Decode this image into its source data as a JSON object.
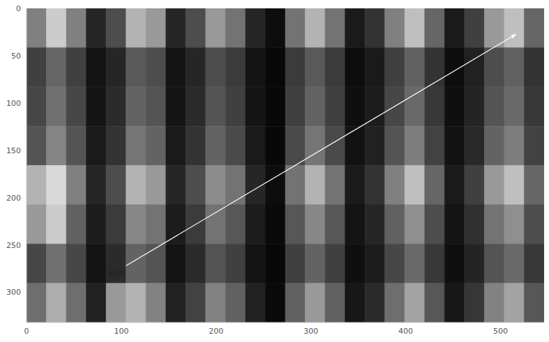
{
  "chart_data": {
    "type": "heatmap",
    "xlim": [
      0,
      546
    ],
    "ylim": [
      332,
      0
    ],
    "xticks": [
      0,
      100,
      200,
      300,
      400,
      500
    ],
    "yticks": [
      0,
      50,
      100,
      150,
      200,
      250,
      300
    ],
    "color": "gray",
    "color_range": [
      0,
      100
    ],
    "grid": false,
    "cells": [
      [
        50,
        80,
        50,
        15,
        30,
        70,
        60,
        15,
        30,
        60,
        45,
        15,
        5,
        45,
        70,
        45,
        10,
        20,
        50,
        75,
        40,
        10,
        25,
        60,
        75,
        40
      ],
      [
        25,
        40,
        25,
        8,
        15,
        35,
        30,
        8,
        15,
        30,
        23,
        8,
        3,
        23,
        35,
        23,
        5,
        10,
        25,
        38,
        20,
        5,
        13,
        30,
        38,
        20
      ],
      [
        28,
        44,
        28,
        8,
        17,
        39,
        33,
        8,
        17,
        33,
        25,
        8,
        3,
        25,
        39,
        25,
        6,
        11,
        28,
        41,
        22,
        6,
        14,
        33,
        41,
        22
      ],
      [
        33,
        52,
        33,
        10,
        20,
        46,
        39,
        10,
        20,
        39,
        29,
        10,
        3,
        29,
        46,
        29,
        7,
        13,
        33,
        49,
        26,
        7,
        16,
        39,
        49,
        26
      ],
      [
        70,
        85,
        50,
        15,
        30,
        70,
        60,
        15,
        30,
        55,
        45,
        15,
        5,
        45,
        70,
        45,
        10,
        20,
        50,
        75,
        40,
        10,
        25,
        60,
        75,
        40
      ],
      [
        60,
        80,
        38,
        11,
        23,
        53,
        45,
        11,
        23,
        45,
        34,
        11,
        4,
        34,
        53,
        34,
        8,
        15,
        38,
        56,
        30,
        8,
        19,
        45,
        56,
        30
      ],
      [
        28,
        44,
        28,
        8,
        17,
        39,
        33,
        8,
        17,
        33,
        25,
        8,
        3,
        25,
        39,
        25,
        6,
        11,
        28,
        41,
        22,
        6,
        14,
        33,
        41,
        22
      ],
      [
        43,
        68,
        43,
        13,
        60,
        70,
        51,
        13,
        26,
        51,
        38,
        13,
        4,
        38,
        60,
        38,
        9,
        17,
        43,
        64,
        34,
        9,
        21,
        51,
        64,
        34
      ]
    ],
    "annotations": [
      {
        "text": "peak",
        "x": 95,
        "y": 279,
        "xy": [
          517,
          27
        ]
      }
    ]
  }
}
